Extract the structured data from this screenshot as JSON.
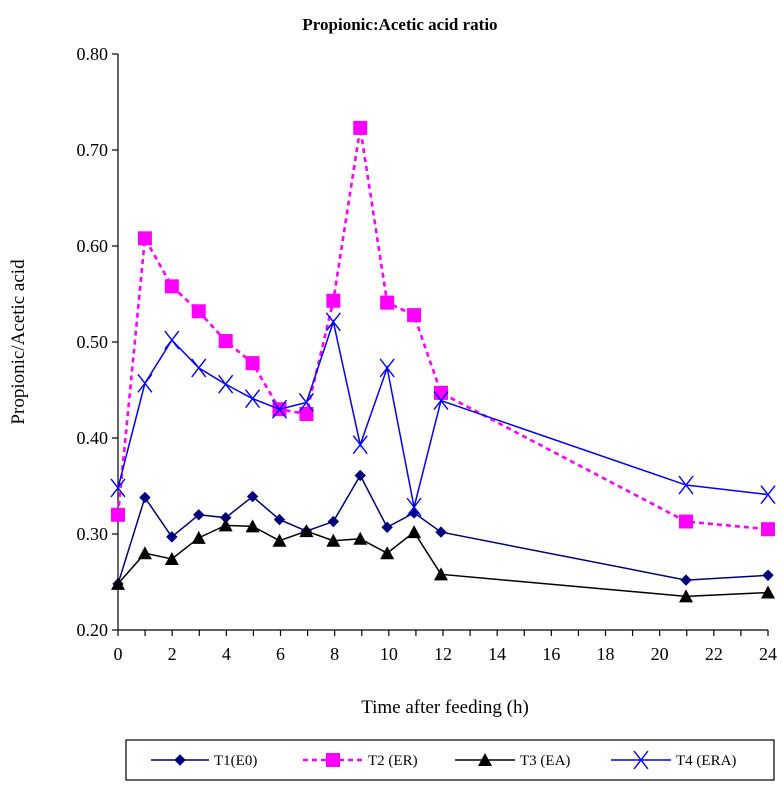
{
  "chart_data": {
    "type": "line",
    "title": "Propionic:Acetic acid ratio",
    "xlabel": "Time after feeding (h)",
    "ylabel": "Propionic/Acetic acid",
    "xlim": [
      0,
      24
    ],
    "ylim": [
      0.2,
      0.8
    ],
    "x_axis_scale": "compressed between 12 and 21 (tick labels 14, 16, 18, 20 printed evenly)",
    "x_ticks": [
      "0",
      "2",
      "4",
      "6",
      "8",
      "10",
      "12",
      "14",
      "16",
      "18",
      "20",
      "22",
      "24"
    ],
    "y_ticks": [
      "0.20",
      "0.30",
      "0.40",
      "0.50",
      "0.60",
      "0.70",
      "0.80"
    ],
    "grid": false,
    "legend_position": "bottom",
    "series": [
      {
        "name": "T1(E0)",
        "color": "#00007f",
        "marker": "diamond",
        "line": "solid",
        "x": [
          0,
          1,
          2,
          3,
          4,
          5,
          6,
          7,
          8,
          9,
          10,
          11,
          12,
          21,
          24
        ],
        "y": [
          0.248,
          0.338,
          0.297,
          0.32,
          0.317,
          0.339,
          0.315,
          0.303,
          0.313,
          0.361,
          0.307,
          0.322,
          0.302,
          0.252,
          0.257
        ]
      },
      {
        "name": "T2 (ER)",
        "color": "#ff00ff",
        "marker": "square",
        "line": "dashed",
        "x": [
          0,
          1,
          2,
          3,
          4,
          5,
          6,
          7,
          8,
          9,
          10,
          11,
          12,
          21,
          24
        ],
        "y": [
          0.32,
          0.608,
          0.558,
          0.532,
          0.501,
          0.478,
          0.43,
          0.425,
          0.543,
          0.723,
          0.541,
          0.528,
          0.447,
          0.313,
          0.305
        ]
      },
      {
        "name": "T3 (EA)",
        "color": "#000000",
        "marker": "triangle",
        "line": "solid",
        "x": [
          0,
          1,
          2,
          3,
          4,
          5,
          6,
          7,
          8,
          9,
          10,
          11,
          12,
          21,
          24
        ],
        "y": [
          0.248,
          0.28,
          0.274,
          0.296,
          0.309,
          0.308,
          0.293,
          0.303,
          0.293,
          0.295,
          0.28,
          0.302,
          0.258,
          0.235,
          0.239
        ]
      },
      {
        "name": "T4 (ERA)",
        "color": "#0000ff",
        "marker": "x",
        "line": "solid",
        "x": [
          0,
          1,
          2,
          3,
          4,
          5,
          6,
          7,
          8,
          9,
          10,
          11,
          12,
          21,
          24
        ],
        "y": [
          0.348,
          0.457,
          0.502,
          0.473,
          0.456,
          0.441,
          0.43,
          0.437,
          0.521,
          0.393,
          0.473,
          0.328,
          0.439,
          0.351,
          0.341
        ]
      }
    ]
  }
}
